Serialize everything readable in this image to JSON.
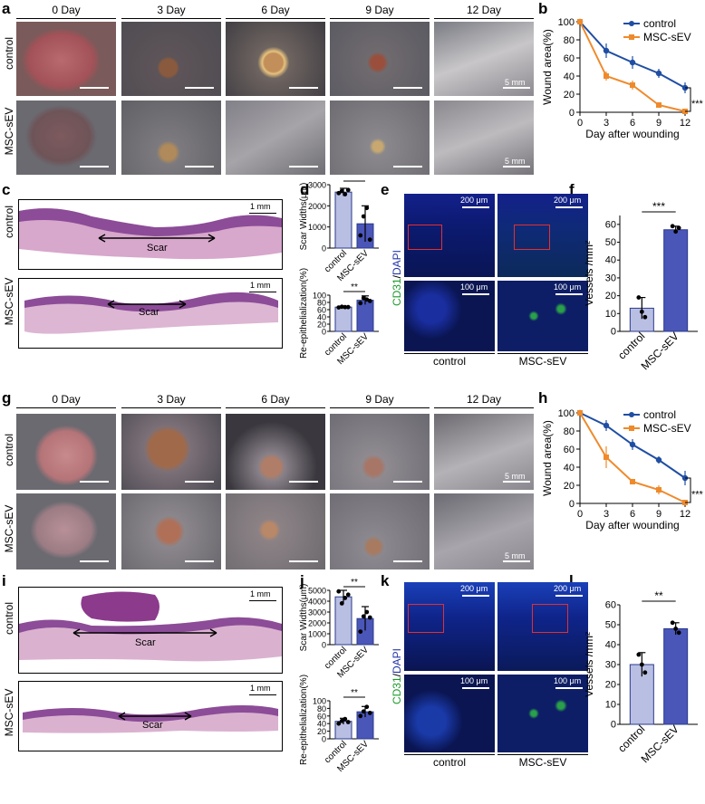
{
  "top": {
    "panel_a": "a",
    "panel_b": "b",
    "panel_c": "c",
    "panel_d": "d",
    "panel_e": "e",
    "panel_f": "f",
    "days": [
      "0 Day",
      "3 Day",
      "6 Day",
      "9 Day",
      "12 Day"
    ],
    "rows": [
      "control",
      "MSC-sEV"
    ],
    "scale_photo": "5 mm",
    "scale_histo": "1 mm",
    "scar_label": "Scar",
    "scale_fluo_low": "200 μm",
    "scale_fluo_high": "100 μm",
    "stain_cd31": "CD31",
    "stain_slash": "/",
    "stain_dapi": "DAPI",
    "groups": [
      "control",
      "MSC-sEV"
    ]
  },
  "bottom": {
    "panel_g": "g",
    "panel_h": "h",
    "panel_i": "i",
    "panel_j": "j",
    "panel_k": "k",
    "panel_l": "l",
    "days": [
      "0 Day",
      "3 Day",
      "6 Day",
      "9 Day",
      "12 Day"
    ],
    "rows": [
      "control",
      "MSC-sEV"
    ],
    "scale_photo": "5 mm",
    "scale_histo": "1 mm",
    "scar_label": "Scar",
    "scale_fluo_low": "200 μm",
    "scale_fluo_high": "100 μm",
    "stain_cd31": "CD31",
    "stain_slash": "/",
    "stain_dapi": "DAPI",
    "groups": [
      "control",
      "MSC-sEV"
    ]
  },
  "colors": {
    "control": "#1f4ea3",
    "msc": "#ef8a2b",
    "bar_ctrl": "#b9bfe3",
    "bar_msc": "#4a56b8"
  },
  "chart_data": [
    {
      "id": "b",
      "type": "line",
      "xlabel": "Day after wounding",
      "ylabel": "Wound area(%)",
      "x": [
        0,
        3,
        6,
        9,
        12
      ],
      "xticks": [
        0,
        3,
        6,
        9,
        12
      ],
      "yticks": [
        0,
        20,
        40,
        60,
        80,
        100
      ],
      "ylim": [
        0,
        100
      ],
      "series": [
        {
          "name": "control",
          "values": [
            100,
            68,
            55,
            43,
            27
          ],
          "err": [
            0,
            8,
            7,
            5,
            6
          ]
        },
        {
          "name": "MSC-sEV",
          "values": [
            100,
            40,
            30,
            8,
            1
          ],
          "err": [
            0,
            5,
            5,
            2,
            1
          ]
        }
      ],
      "significance": "***",
      "legend": "top-right"
    },
    {
      "id": "d1",
      "type": "bar",
      "categories": [
        "control",
        "MSC-sEV"
      ],
      "ylabel": "Scar Widths(μm)",
      "values": [
        2650,
        1150
      ],
      "err": [
        180,
        850
      ],
      "yticks": [
        0,
        1000,
        2000,
        3000
      ],
      "ylim": [
        0,
        3000
      ],
      "points": [
        [
          2600,
          2700,
          2550,
          2750
        ],
        [
          600,
          1500,
          1900,
          400
        ]
      ],
      "significance": "**"
    },
    {
      "id": "d2",
      "type": "bar",
      "categories": [
        "control",
        "MSC-sEV"
      ],
      "ylabel": "Re-epithelialization(%)",
      "values": [
        67,
        86
      ],
      "err": [
        2,
        12
      ],
      "yticks": [
        0,
        20,
        40,
        60,
        80,
        100
      ],
      "ylim": [
        0,
        100
      ],
      "points": [
        [
          66,
          68,
          67,
          67
        ],
        [
          78,
          92,
          88,
          84
        ]
      ],
      "significance": "**"
    },
    {
      "id": "f",
      "type": "bar",
      "categories": [
        "control",
        "MSC-sEV"
      ],
      "ylabel": "Vessels /mm²",
      "values": [
        13,
        57
      ],
      "err": [
        6,
        2
      ],
      "yticks": [
        0,
        10,
        20,
        30,
        40,
        50,
        60
      ],
      "ylim": [
        0,
        65
      ],
      "points": [
        [
          19,
          11,
          8
        ],
        [
          59,
          56,
          58
        ]
      ],
      "significance": "***"
    },
    {
      "id": "h",
      "type": "line",
      "xlabel": "Day after wounding",
      "ylabel": "Wound area(%)",
      "x": [
        0,
        3,
        6,
        9,
        12
      ],
      "xticks": [
        0,
        3,
        6,
        9,
        12
      ],
      "yticks": [
        0,
        20,
        40,
        60,
        80,
        100
      ],
      "ylim": [
        0,
        100
      ],
      "series": [
        {
          "name": "control",
          "values": [
            100,
            86,
            65,
            48,
            28
          ],
          "err": [
            0,
            6,
            6,
            4,
            8
          ]
        },
        {
          "name": "MSC-sEV",
          "values": [
            100,
            51,
            24,
            15,
            1
          ],
          "err": [
            0,
            12,
            3,
            5,
            1
          ]
        }
      ],
      "significance": "***",
      "legend": "top-right"
    },
    {
      "id": "j1",
      "type": "bar",
      "categories": [
        "control",
        "MSC-sEV"
      ],
      "ylabel": "Scar Widths(μm)",
      "values": [
        4400,
        2400
      ],
      "err": [
        600,
        1100
      ],
      "yticks": [
        0,
        1000,
        2000,
        3000,
        4000,
        5000
      ],
      "ylim": [
        0,
        5000
      ],
      "points": [
        [
          4900,
          3800,
          4300,
          4600
        ],
        [
          1200,
          2600,
          3000,
          2500
        ]
      ],
      "significance": "**"
    },
    {
      "id": "j2",
      "type": "bar",
      "categories": [
        "control",
        "MSC-sEV"
      ],
      "ylabel": "Re-epithelialization(%)",
      "values": [
        46,
        71
      ],
      "err": [
        8,
        14
      ],
      "yticks": [
        0,
        20,
        40,
        60,
        80,
        100
      ],
      "ylim": [
        0,
        100
      ],
      "points": [
        [
          40,
          47,
          52,
          44
        ],
        [
          60,
          72,
          84,
          68
        ]
      ],
      "significance": "**"
    },
    {
      "id": "l",
      "type": "bar",
      "categories": [
        "control",
        "MSC-sEV"
      ],
      "ylabel": "Vessels /mm²",
      "values": [
        30,
        48
      ],
      "err": [
        6,
        3
      ],
      "yticks": [
        0,
        10,
        20,
        30,
        40,
        50,
        60
      ],
      "ylim": [
        0,
        60
      ],
      "points": [
        [
          35,
          30,
          26
        ],
        [
          51,
          48,
          46
        ]
      ],
      "significance": "**"
    }
  ]
}
